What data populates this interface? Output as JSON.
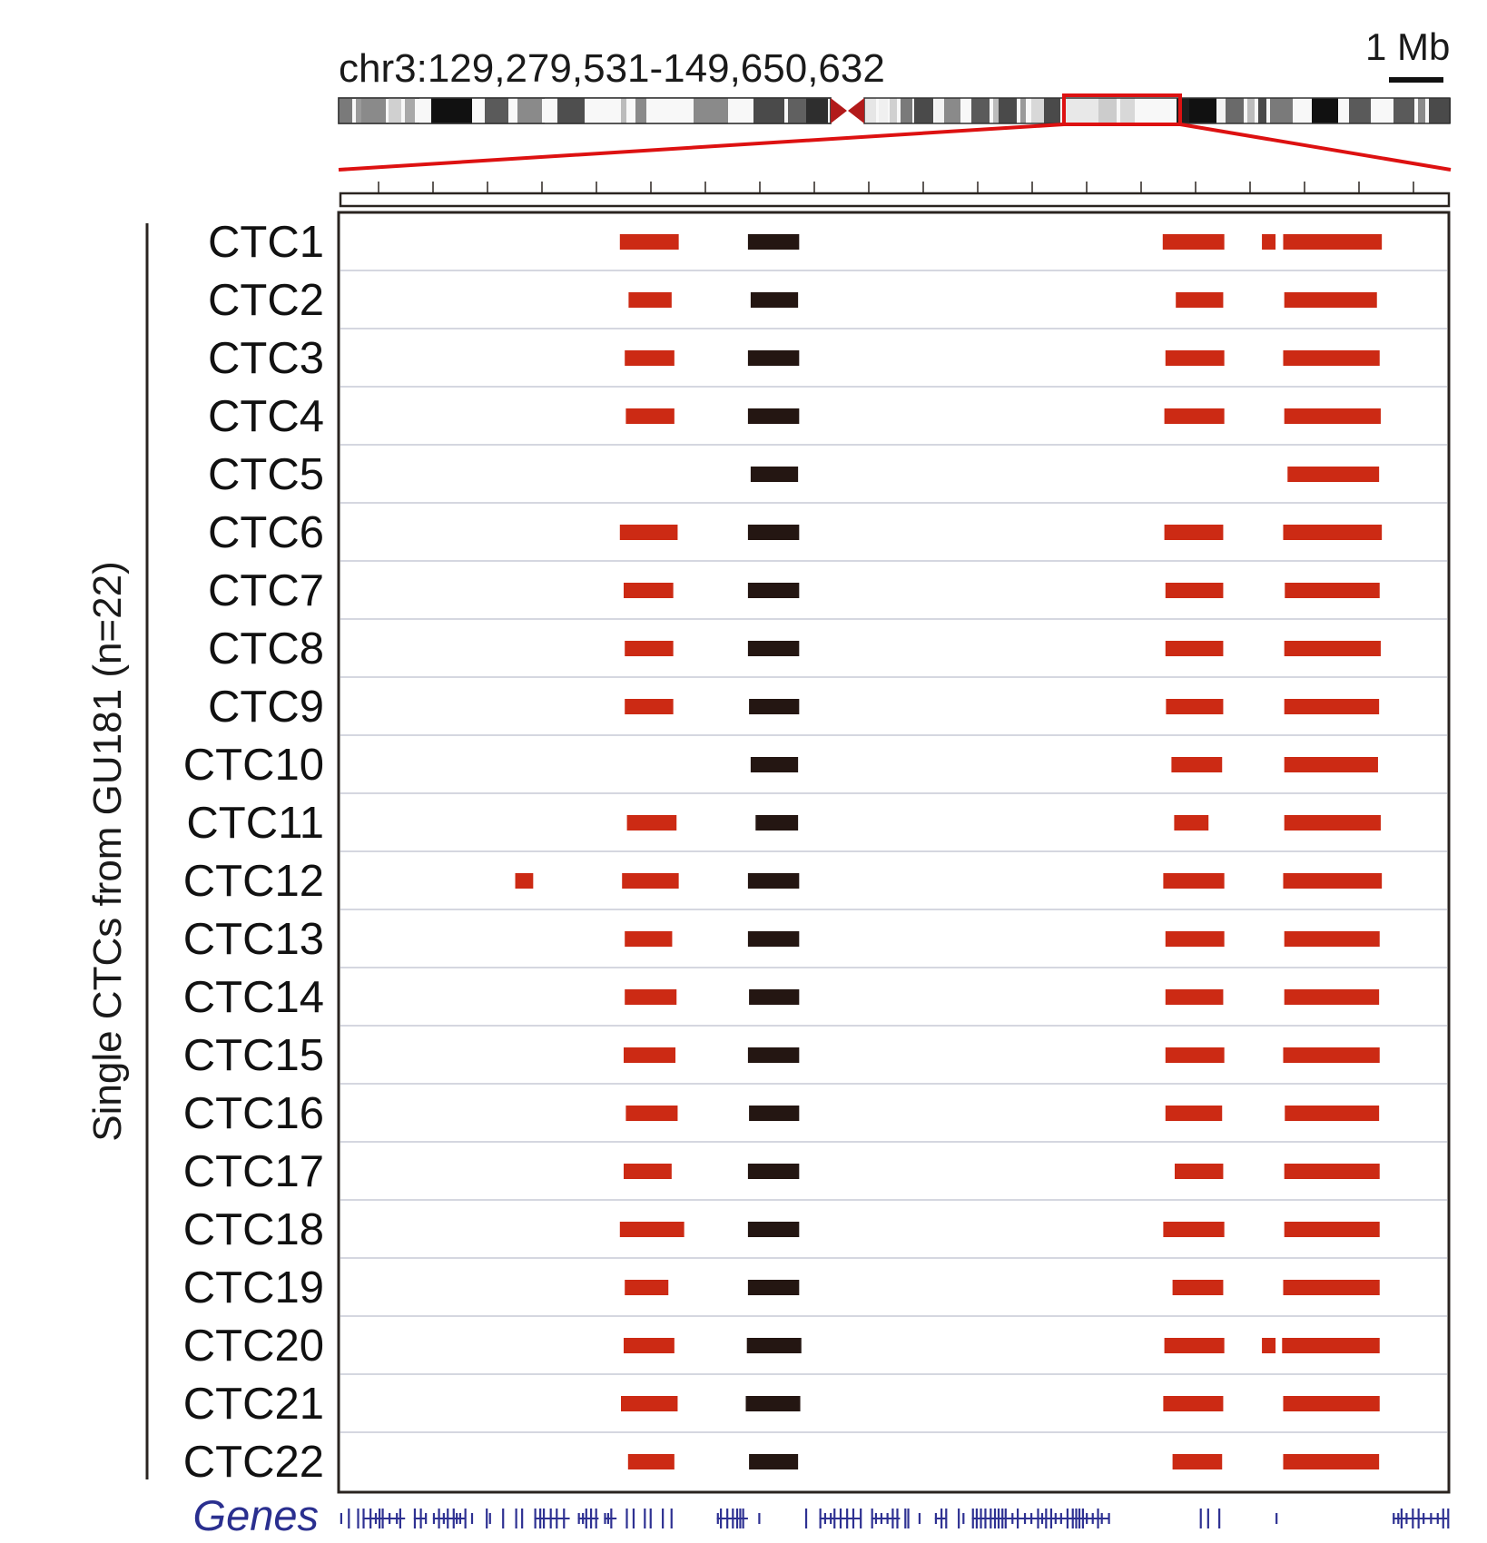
{
  "header": {
    "region": "chr3:129,279,531-149,650,632",
    "scale_label": "1 Mb"
  },
  "y_axis_label": "Single CTCs from GU181 (n=22)",
  "genes_label": "Genes",
  "colors": {
    "gain": "#cc2a14",
    "loss": "#241612",
    "gene": "#2e3192",
    "highlight": "#dd1111"
  },
  "chart_data": {
    "type": "table",
    "x_unit": "Mb",
    "x_range_mb": [
      129.28,
      149.65
    ],
    "rows": [
      {
        "label": "CTC1",
        "segments": [
          {
            "start": 134.44,
            "end": 135.52,
            "kind": "gain"
          },
          {
            "start": 136.79,
            "end": 137.73,
            "kind": "loss"
          },
          {
            "start": 144.4,
            "end": 145.53,
            "kind": "gain"
          },
          {
            "start": 146.22,
            "end": 146.47,
            "kind": "gain"
          },
          {
            "start": 146.61,
            "end": 148.42,
            "kind": "gain"
          }
        ]
      },
      {
        "label": "CTC2",
        "segments": [
          {
            "start": 134.6,
            "end": 135.39,
            "kind": "gain"
          },
          {
            "start": 136.84,
            "end": 137.71,
            "kind": "loss"
          },
          {
            "start": 144.64,
            "end": 145.51,
            "kind": "gain"
          },
          {
            "start": 146.63,
            "end": 148.33,
            "kind": "gain"
          }
        ]
      },
      {
        "label": "CTC3",
        "segments": [
          {
            "start": 134.53,
            "end": 135.44,
            "kind": "gain"
          },
          {
            "start": 136.79,
            "end": 137.73,
            "kind": "loss"
          },
          {
            "start": 144.45,
            "end": 145.53,
            "kind": "gain"
          },
          {
            "start": 146.61,
            "end": 148.38,
            "kind": "gain"
          }
        ]
      },
      {
        "label": "CTC4",
        "segments": [
          {
            "start": 134.55,
            "end": 135.44,
            "kind": "gain"
          },
          {
            "start": 136.79,
            "end": 137.73,
            "kind": "loss"
          },
          {
            "start": 144.43,
            "end": 145.53,
            "kind": "gain"
          },
          {
            "start": 146.63,
            "end": 148.4,
            "kind": "gain"
          }
        ]
      },
      {
        "label": "CTC5",
        "segments": [
          {
            "start": 136.84,
            "end": 137.71,
            "kind": "loss"
          },
          {
            "start": 146.69,
            "end": 148.37,
            "kind": "gain"
          }
        ]
      },
      {
        "label": "CTC6",
        "segments": [
          {
            "start": 134.44,
            "end": 135.5,
            "kind": "gain"
          },
          {
            "start": 136.79,
            "end": 137.73,
            "kind": "loss"
          },
          {
            "start": 144.43,
            "end": 145.51,
            "kind": "gain"
          },
          {
            "start": 146.61,
            "end": 148.42,
            "kind": "gain"
          }
        ]
      },
      {
        "label": "CTC7",
        "segments": [
          {
            "start": 134.51,
            "end": 135.42,
            "kind": "gain"
          },
          {
            "start": 136.79,
            "end": 137.73,
            "kind": "loss"
          },
          {
            "start": 144.45,
            "end": 145.51,
            "kind": "gain"
          },
          {
            "start": 146.64,
            "end": 148.38,
            "kind": "gain"
          }
        ]
      },
      {
        "label": "CTC8",
        "segments": [
          {
            "start": 134.53,
            "end": 135.42,
            "kind": "gain"
          },
          {
            "start": 136.79,
            "end": 137.73,
            "kind": "loss"
          },
          {
            "start": 144.45,
            "end": 145.51,
            "kind": "gain"
          },
          {
            "start": 146.63,
            "end": 148.4,
            "kind": "gain"
          }
        ]
      },
      {
        "label": "CTC9",
        "segments": [
          {
            "start": 134.53,
            "end": 135.42,
            "kind": "gain"
          },
          {
            "start": 136.81,
            "end": 137.73,
            "kind": "loss"
          },
          {
            "start": 144.46,
            "end": 145.51,
            "kind": "gain"
          },
          {
            "start": 146.63,
            "end": 148.37,
            "kind": "gain"
          }
        ]
      },
      {
        "label": "CTC10",
        "segments": [
          {
            "start": 136.84,
            "end": 137.71,
            "kind": "loss"
          },
          {
            "start": 144.56,
            "end": 145.49,
            "kind": "gain"
          },
          {
            "start": 146.63,
            "end": 148.35,
            "kind": "gain"
          }
        ]
      },
      {
        "label": "CTC11",
        "segments": [
          {
            "start": 134.57,
            "end": 135.48,
            "kind": "gain"
          },
          {
            "start": 136.93,
            "end": 137.71,
            "kind": "loss"
          },
          {
            "start": 144.61,
            "end": 145.24,
            "kind": "gain"
          },
          {
            "start": 146.63,
            "end": 148.4,
            "kind": "gain"
          }
        ]
      },
      {
        "label": "CTC12",
        "segments": [
          {
            "start": 132.52,
            "end": 132.85,
            "kind": "gain"
          },
          {
            "start": 134.48,
            "end": 135.52,
            "kind": "gain"
          },
          {
            "start": 136.79,
            "end": 137.73,
            "kind": "loss"
          },
          {
            "start": 144.41,
            "end": 145.53,
            "kind": "gain"
          },
          {
            "start": 146.61,
            "end": 148.42,
            "kind": "gain"
          }
        ]
      },
      {
        "label": "CTC13",
        "segments": [
          {
            "start": 134.53,
            "end": 135.4,
            "kind": "gain"
          },
          {
            "start": 136.79,
            "end": 137.73,
            "kind": "loss"
          },
          {
            "start": 144.45,
            "end": 145.53,
            "kind": "gain"
          },
          {
            "start": 146.63,
            "end": 148.38,
            "kind": "gain"
          }
        ]
      },
      {
        "label": "CTC14",
        "segments": [
          {
            "start": 134.53,
            "end": 135.48,
            "kind": "gain"
          },
          {
            "start": 136.81,
            "end": 137.73,
            "kind": "loss"
          },
          {
            "start": 144.45,
            "end": 145.51,
            "kind": "gain"
          },
          {
            "start": 146.63,
            "end": 148.37,
            "kind": "gain"
          }
        ]
      },
      {
        "label": "CTC15",
        "segments": [
          {
            "start": 134.51,
            "end": 135.46,
            "kind": "gain"
          },
          {
            "start": 136.79,
            "end": 137.73,
            "kind": "loss"
          },
          {
            "start": 144.45,
            "end": 145.53,
            "kind": "gain"
          },
          {
            "start": 146.61,
            "end": 148.38,
            "kind": "gain"
          }
        ]
      },
      {
        "label": "CTC16",
        "segments": [
          {
            "start": 134.55,
            "end": 135.5,
            "kind": "gain"
          },
          {
            "start": 136.81,
            "end": 137.73,
            "kind": "loss"
          },
          {
            "start": 144.45,
            "end": 145.49,
            "kind": "gain"
          },
          {
            "start": 146.64,
            "end": 148.37,
            "kind": "gain"
          }
        ]
      },
      {
        "label": "CTC17",
        "segments": [
          {
            "start": 134.51,
            "end": 135.39,
            "kind": "gain"
          },
          {
            "start": 136.79,
            "end": 137.73,
            "kind": "loss"
          },
          {
            "start": 144.62,
            "end": 145.51,
            "kind": "gain"
          },
          {
            "start": 146.63,
            "end": 148.38,
            "kind": "gain"
          }
        ]
      },
      {
        "label": "CTC18",
        "segments": [
          {
            "start": 134.44,
            "end": 135.62,
            "kind": "gain"
          },
          {
            "start": 136.79,
            "end": 137.73,
            "kind": "loss"
          },
          {
            "start": 144.41,
            "end": 145.53,
            "kind": "gain"
          },
          {
            "start": 146.63,
            "end": 148.38,
            "kind": "gain"
          }
        ]
      },
      {
        "label": "CTC19",
        "segments": [
          {
            "start": 134.53,
            "end": 135.33,
            "kind": "gain"
          },
          {
            "start": 136.79,
            "end": 137.73,
            "kind": "loss"
          },
          {
            "start": 144.58,
            "end": 145.51,
            "kind": "gain"
          },
          {
            "start": 146.61,
            "end": 148.38,
            "kind": "gain"
          }
        ]
      },
      {
        "label": "CTC20",
        "segments": [
          {
            "start": 134.51,
            "end": 135.44,
            "kind": "gain"
          },
          {
            "start": 136.77,
            "end": 137.77,
            "kind": "loss"
          },
          {
            "start": 144.43,
            "end": 145.53,
            "kind": "gain"
          },
          {
            "start": 146.22,
            "end": 146.47,
            "kind": "gain"
          },
          {
            "start": 146.59,
            "end": 148.38,
            "kind": "gain"
          }
        ]
      },
      {
        "label": "CTC21",
        "segments": [
          {
            "start": 134.46,
            "end": 135.5,
            "kind": "gain"
          },
          {
            "start": 136.75,
            "end": 137.75,
            "kind": "loss"
          },
          {
            "start": 144.41,
            "end": 145.51,
            "kind": "gain"
          },
          {
            "start": 146.61,
            "end": 148.38,
            "kind": "gain"
          }
        ]
      },
      {
        "label": "CTC22",
        "segments": [
          {
            "start": 134.59,
            "end": 135.44,
            "kind": "gain"
          },
          {
            "start": 136.81,
            "end": 137.71,
            "kind": "loss"
          },
          {
            "start": 144.58,
            "end": 145.49,
            "kind": "gain"
          },
          {
            "start": 146.61,
            "end": 148.37,
            "kind": "gain"
          }
        ]
      }
    ],
    "genes_mb": [
      [
        129.31,
        129.37
      ],
      [
        129.45,
        129.49
      ],
      [
        129.62,
        129.67
      ],
      [
        129.72,
        130.5
      ],
      [
        130.66,
        130.88
      ],
      [
        131.01,
        131.62
      ],
      [
        131.71,
        131.77
      ],
      [
        131.98,
        132.1
      ],
      [
        132.28,
        132.38
      ],
      [
        132.52,
        132.69
      ],
      [
        132.87,
        133.52
      ],
      [
        133.67,
        134.05
      ],
      [
        134.15,
        134.38
      ],
      [
        134.55,
        134.71
      ],
      [
        134.88,
        134.99
      ],
      [
        135.21,
        135.25
      ],
      [
        135.37,
        135.42
      ],
      [
        136.22,
        136.79
      ],
      [
        136.98,
        137.09
      ],
      [
        137.84,
        137.88
      ],
      [
        138.1,
        138.85
      ],
      [
        139.05,
        139.58
      ],
      [
        139.66,
        139.75
      ],
      [
        139.92,
        140.03
      ],
      [
        140.22,
        140.42
      ],
      [
        140.64,
        140.73
      ],
      [
        140.9,
        143.42
      ],
      [
        145.08,
        145.25
      ],
      [
        145.42,
        145.53
      ],
      [
        146.47,
        146.51
      ],
      [
        148.62,
        149.62
      ]
    ]
  }
}
